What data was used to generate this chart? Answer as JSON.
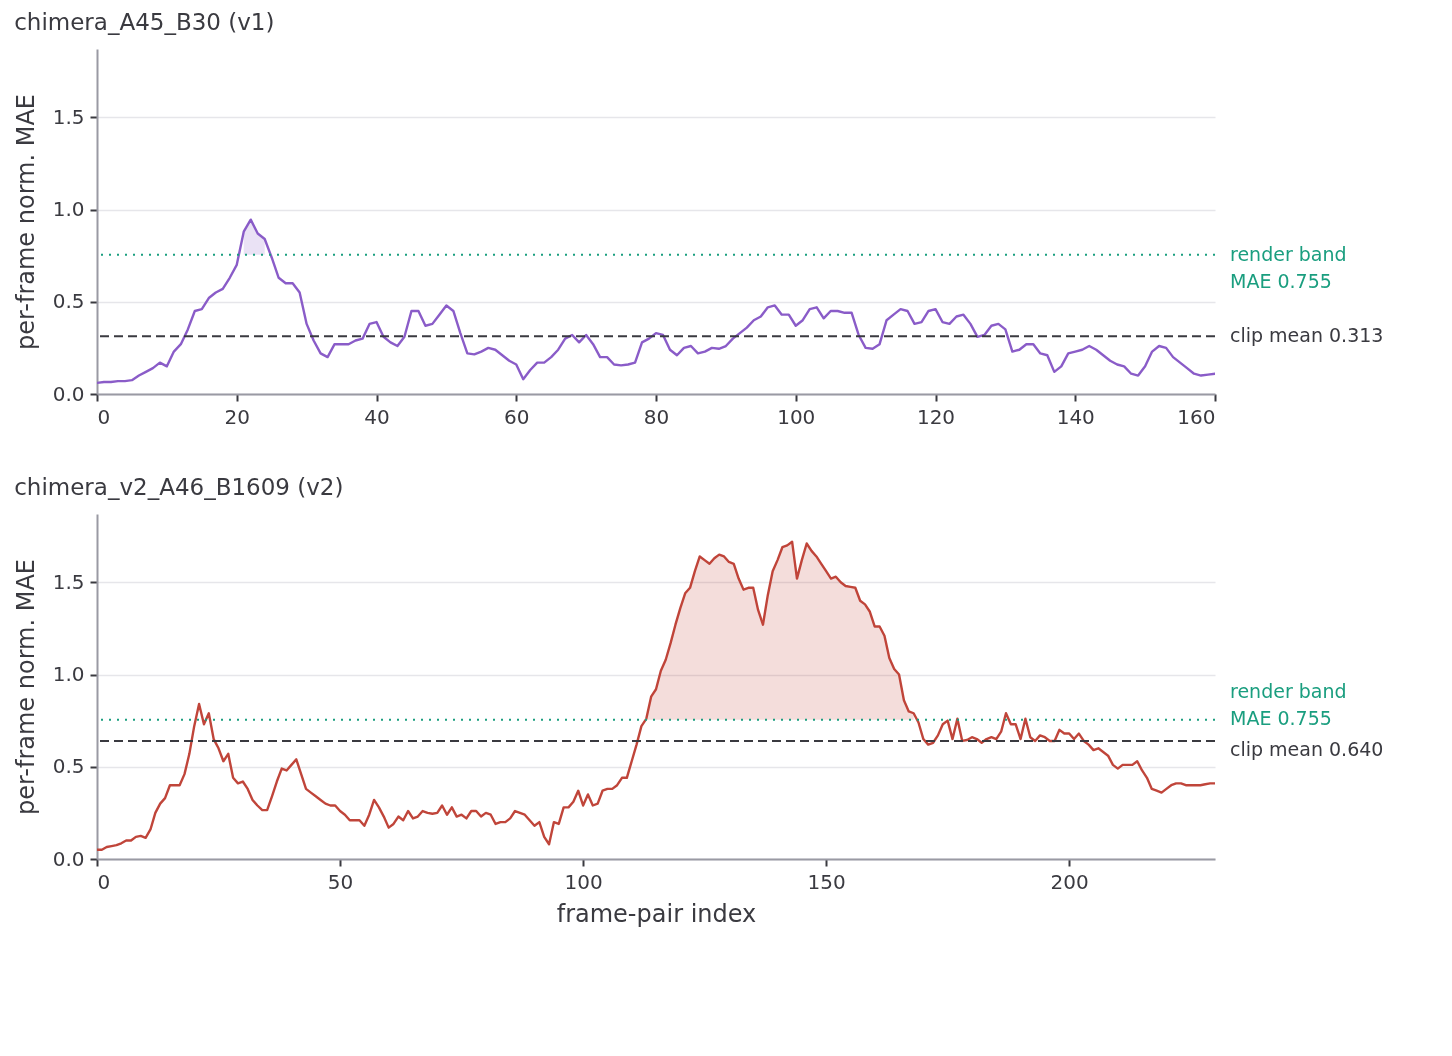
{
  "chart_data": [
    {
      "type": "line",
      "title": "chimera_A45_B30 (v1)",
      "ylabel": "per-frame norm. MAE",
      "xlim": [
        0,
        160
      ],
      "xticks": [
        0,
        20,
        40,
        60,
        80,
        100,
        120,
        140,
        160
      ],
      "ylim": [
        0,
        1.87
      ],
      "yticks": [
        {
          "value": 0,
          "label": "0.0"
        },
        {
          "value": 0.5,
          "label": "0.5"
        },
        {
          "value": 1,
          "label": "1.0"
        },
        {
          "value": 1.5,
          "label": "1.5"
        }
      ],
      "grid": "y",
      "marker": "none",
      "line_style": "solid",
      "series": [
        {
          "color": "#8a5cc8",
          "x": [
            0,
            1,
            2,
            3,
            4,
            5,
            6,
            7,
            8,
            9,
            10,
            11,
            12,
            13,
            14,
            15,
            16,
            17,
            18,
            19,
            20,
            21,
            22,
            23,
            24,
            25,
            26,
            27,
            28,
            29,
            30,
            31,
            32,
            33,
            34,
            35,
            36,
            37,
            38,
            39,
            40,
            41,
            42,
            43,
            44,
            45,
            46,
            47,
            48,
            49,
            50,
            51,
            52,
            53,
            54,
            55,
            56,
            57,
            58,
            59,
            60,
            61,
            62,
            63,
            64,
            65,
            66,
            67,
            68,
            69,
            70,
            71,
            72,
            73,
            74,
            75,
            76,
            77,
            78,
            79,
            80,
            81,
            82,
            83,
            84,
            85,
            86,
            87,
            88,
            89,
            90,
            91,
            92,
            93,
            94,
            95,
            96,
            97,
            98,
            99,
            100,
            101,
            102,
            103,
            104,
            105,
            106,
            107,
            108,
            109,
            110,
            111,
            112,
            113,
            114,
            115,
            116,
            117,
            118,
            119,
            120,
            121,
            122,
            123,
            124,
            125,
            126,
            127,
            128,
            129,
            130,
            131,
            132,
            133,
            134,
            135,
            136,
            137,
            138,
            139,
            140,
            141,
            142,
            143,
            144,
            145,
            146,
            147,
            148,
            149,
            150,
            151,
            152,
            153,
            154,
            155,
            156,
            157,
            158,
            159,
            160
          ],
          "values": [
            0.06,
            0.065,
            0.065,
            0.07,
            0.07,
            0.075,
            0.1,
            0.12,
            0.14,
            0.17,
            0.15,
            0.23,
            0.27,
            0.35,
            0.45,
            0.46,
            0.52,
            0.55,
            0.57,
            0.63,
            0.7,
            0.88,
            0.945,
            0.87,
            0.84,
            0.74,
            0.63,
            0.6,
            0.6,
            0.55,
            0.38,
            0.29,
            0.22,
            0.2,
            0.27,
            0.27,
            0.27,
            0.29,
            0.3,
            0.38,
            0.39,
            0.31,
            0.28,
            0.26,
            0.31,
            0.45,
            0.45,
            0.37,
            0.38,
            0.43,
            0.48,
            0.45,
            0.33,
            0.22,
            0.215,
            0.23,
            0.25,
            0.24,
            0.21,
            0.18,
            0.16,
            0.08,
            0.13,
            0.17,
            0.17,
            0.2,
            0.24,
            0.3,
            0.32,
            0.28,
            0.32,
            0.27,
            0.2,
            0.2,
            0.16,
            0.155,
            0.16,
            0.17,
            0.28,
            0.3,
            0.33,
            0.32,
            0.24,
            0.21,
            0.25,
            0.26,
            0.22,
            0.23,
            0.25,
            0.245,
            0.26,
            0.3,
            0.33,
            0.36,
            0.4,
            0.42,
            0.47,
            0.48,
            0.43,
            0.43,
            0.37,
            0.4,
            0.46,
            0.47,
            0.41,
            0.45,
            0.45,
            0.44,
            0.44,
            0.32,
            0.25,
            0.245,
            0.27,
            0.4,
            0.43,
            0.46,
            0.45,
            0.38,
            0.39,
            0.45,
            0.46,
            0.39,
            0.38,
            0.42,
            0.43,
            0.38,
            0.31,
            0.32,
            0.37,
            0.38,
            0.35,
            0.23,
            0.24,
            0.27,
            0.27,
            0.22,
            0.21,
            0.12,
            0.15,
            0.22,
            0.23,
            0.24,
            0.26,
            0.24,
            0.21,
            0.18,
            0.16,
            0.15,
            0.11,
            0.1,
            0.15,
            0.23,
            0.26,
            0.25,
            0.2,
            0.17,
            0.14,
            0.11,
            0.1,
            0.105,
            0.11
          ],
          "lower": [
            null,
            null,
            null,
            null,
            null,
            null,
            null,
            null,
            null,
            null,
            null,
            null,
            null,
            null,
            null,
            null,
            null,
            null,
            null,
            null,
            null,
            0.755,
            0.755,
            0.755,
            0.755,
            null,
            null,
            null,
            null,
            null,
            null,
            null,
            null,
            null,
            null,
            null,
            null,
            null,
            null,
            null,
            null,
            null,
            null,
            null,
            null,
            null,
            null,
            null,
            null,
            null,
            null,
            null,
            null,
            null,
            null,
            null,
            null,
            null,
            null,
            null,
            null,
            null,
            null,
            null,
            null,
            null,
            null,
            null,
            null,
            null,
            null,
            null,
            null,
            null,
            null,
            null,
            null,
            null,
            null,
            null,
            null,
            null,
            null,
            null,
            null,
            null,
            null,
            null,
            null,
            null,
            null,
            null,
            null,
            null,
            null,
            null,
            null,
            null,
            null,
            null,
            null,
            null,
            null,
            null,
            null,
            null,
            null,
            null,
            null,
            null,
            null,
            null,
            null,
            null,
            null,
            null,
            null,
            null,
            null,
            null,
            null,
            null,
            null,
            null,
            null,
            null,
            null,
            null,
            null,
            null,
            null,
            null,
            null,
            null,
            null,
            null,
            null,
            null,
            null,
            null,
            null,
            null,
            null,
            null,
            null,
            null,
            null,
            null,
            null,
            null,
            null,
            null,
            null,
            null,
            null,
            null,
            null,
            null,
            null,
            null,
            null
          ],
          "upper": [
            null,
            null,
            null,
            null,
            null,
            null,
            null,
            null,
            null,
            null,
            null,
            null,
            null,
            null,
            null,
            null,
            null,
            null,
            null,
            null,
            null,
            0.88,
            0.945,
            0.87,
            0.84,
            null,
            null,
            null,
            null,
            null,
            null,
            null,
            null,
            null,
            null,
            null,
            null,
            null,
            null,
            null,
            null,
            null,
            null,
            null,
            null,
            null,
            null,
            null,
            null,
            null,
            null,
            null,
            null,
            null,
            null,
            null,
            null,
            null,
            null,
            null,
            null,
            null,
            null,
            null,
            null,
            null,
            null,
            null,
            null,
            null,
            null,
            null,
            null,
            null,
            null,
            null,
            null,
            null,
            null,
            null,
            null,
            null,
            null,
            null,
            null,
            null,
            null,
            null,
            null,
            null,
            null,
            null,
            null,
            null,
            null,
            null,
            null,
            null,
            null,
            null,
            null,
            null,
            null,
            null,
            null,
            null,
            null,
            null,
            null,
            null,
            null,
            null,
            null,
            null,
            null,
            null,
            null,
            null,
            null,
            null,
            null,
            null,
            null,
            null,
            null,
            null,
            null,
            null,
            null,
            null,
            null,
            null,
            null,
            null,
            null,
            null,
            null,
            null,
            null,
            null,
            null,
            null,
            null,
            null,
            null,
            null,
            null,
            null,
            null,
            null,
            null,
            null,
            null,
            null,
            null,
            null,
            null,
            null,
            null,
            null,
            null
          ]
        }
      ],
      "ref_lines": [
        {
          "axis": "y",
          "value": 0.755,
          "label": "render band\nMAE 0.755",
          "color": "#1a9e7f",
          "line_style": "dotted"
        },
        {
          "axis": "y",
          "value": 0.313,
          "label": "clip mean 0.313",
          "color": "#3a3a40",
          "line_style": "dashed"
        }
      ]
    },
    {
      "type": "line",
      "title": "chimera_v2_A46_B1609 (v2)",
      "xlabel": "frame-pair index",
      "ylabel": "per-frame norm. MAE",
      "xlim": [
        0,
        230
      ],
      "xticks": [
        0,
        50,
        100,
        150,
        200
      ],
      "ylim": [
        0,
        1.87
      ],
      "yticks": [
        {
          "value": 0,
          "label": "0.0"
        },
        {
          "value": 0.5,
          "label": "0.5"
        },
        {
          "value": 1,
          "label": "1.0"
        },
        {
          "value": 1.5,
          "label": "1.5"
        }
      ],
      "grid": "y",
      "marker": "none",
      "line_style": "solid",
      "series": [
        {
          "color": "#c0453a",
          "x": [
            0,
            1,
            2,
            3,
            4,
            5,
            6,
            7,
            8,
            9,
            10,
            11,
            12,
            13,
            14,
            15,
            16,
            17,
            18,
            19,
            20,
            21,
            22,
            23,
            24,
            25,
            26,
            27,
            28,
            29,
            30,
            31,
            32,
            33,
            34,
            35,
            36,
            37,
            38,
            39,
            40,
            41,
            42,
            43,
            44,
            45,
            46,
            47,
            48,
            49,
            50,
            51,
            52,
            53,
            54,
            55,
            56,
            57,
            58,
            59,
            60,
            61,
            62,
            63,
            64,
            65,
            66,
            67,
            68,
            69,
            70,
            71,
            72,
            73,
            74,
            75,
            76,
            77,
            78,
            79,
            80,
            81,
            82,
            83,
            84,
            85,
            86,
            87,
            88,
            89,
            90,
            91,
            92,
            93,
            94,
            95,
            96,
            97,
            98,
            99,
            100,
            101,
            102,
            103,
            104,
            105,
            106,
            107,
            108,
            109,
            110,
            111,
            112,
            113,
            114,
            115,
            116,
            117,
            118,
            119,
            120,
            121,
            122,
            123,
            124,
            125,
            126,
            127,
            128,
            129,
            130,
            131,
            132,
            133,
            134,
            135,
            136,
            137,
            138,
            139,
            140,
            141,
            142,
            143,
            144,
            145,
            146,
            147,
            148,
            149,
            150,
            151,
            152,
            153,
            154,
            155,
            156,
            157,
            158,
            159,
            160,
            161,
            162,
            163,
            164,
            165,
            166,
            167,
            168,
            169,
            170,
            171,
            172,
            173,
            174,
            175,
            176,
            177,
            178,
            179,
            180,
            181,
            182,
            183,
            184,
            185,
            186,
            187,
            188,
            189,
            190,
            191,
            192,
            193,
            194,
            195,
            196,
            197,
            198,
            199,
            200,
            201,
            202,
            203,
            204,
            205,
            206,
            207,
            208,
            209,
            210,
            211,
            212,
            213,
            214,
            215,
            216,
            217,
            218,
            219,
            220,
            221,
            222,
            223,
            224,
            225,
            226,
            227,
            228,
            229,
            230
          ],
          "values": [
            0.05,
            0.05,
            0.065,
            0.07,
            0.075,
            0.085,
            0.1,
            0.1,
            0.12,
            0.125,
            0.115,
            0.16,
            0.25,
            0.3,
            0.33,
            0.4,
            0.4,
            0.4,
            0.46,
            0.57,
            0.72,
            0.84,
            0.73,
            0.79,
            0.65,
            0.6,
            0.53,
            0.57,
            0.44,
            0.41,
            0.42,
            0.38,
            0.32,
            0.29,
            0.265,
            0.265,
            0.34,
            0.42,
            0.49,
            0.48,
            0.51,
            0.54,
            0.46,
            0.38,
            0.36,
            0.34,
            0.32,
            0.3,
            0.29,
            0.29,
            0.26,
            0.24,
            0.21,
            0.21,
            0.21,
            0.18,
            0.24,
            0.32,
            0.28,
            0.23,
            0.17,
            0.19,
            0.23,
            0.21,
            0.26,
            0.22,
            0.23,
            0.26,
            0.25,
            0.245,
            0.25,
            0.29,
            0.24,
            0.28,
            0.23,
            0.24,
            0.22,
            0.26,
            0.26,
            0.23,
            0.25,
            0.24,
            0.19,
            0.2,
            0.2,
            0.22,
            0.26,
            0.25,
            0.24,
            0.21,
            0.18,
            0.2,
            0.12,
            0.08,
            0.2,
            0.19,
            0.28,
            0.28,
            0.31,
            0.37,
            0.29,
            0.35,
            0.29,
            0.3,
            0.37,
            0.38,
            0.38,
            0.4,
            0.44,
            0.44,
            0.53,
            0.62,
            0.72,
            0.76,
            0.88,
            0.92,
            1.02,
            1.08,
            1.17,
            1.27,
            1.36,
            1.44,
            1.47,
            1.56,
            1.64,
            1.62,
            1.6,
            1.63,
            1.65,
            1.64,
            1.61,
            1.6,
            1.52,
            1.46,
            1.47,
            1.47,
            1.35,
            1.27,
            1.43,
            1.56,
            1.62,
            1.69,
            1.7,
            1.72,
            1.52,
            1.62,
            1.71,
            1.67,
            1.64,
            1.6,
            1.56,
            1.52,
            1.53,
            1.5,
            1.48,
            1.475,
            1.47,
            1.4,
            1.38,
            1.34,
            1.26,
            1.26,
            1.21,
            1.09,
            1.03,
            1.0,
            0.86,
            0.8,
            0.79,
            0.74,
            0.65,
            0.62,
            0.63,
            0.67,
            0.73,
            0.75,
            0.65,
            0.76,
            0.64,
            0.645,
            0.66,
            0.65,
            0.63,
            0.65,
            0.66,
            0.65,
            0.69,
            0.79,
            0.73,
            0.73,
            0.65,
            0.76,
            0.66,
            0.64,
            0.67,
            0.66,
            0.64,
            0.64,
            0.7,
            0.68,
            0.68,
            0.65,
            0.68,
            0.64,
            0.62,
            0.59,
            0.6,
            0.58,
            0.56,
            0.51,
            0.49,
            0.51,
            0.51,
            0.51,
            0.53,
            0.48,
            0.44,
            0.38,
            0.37,
            0.36,
            0.38,
            0.4,
            0.41,
            0.41,
            0.4,
            0.4,
            0.4,
            0.4,
            0.405,
            0.41,
            0.41
          ],
          "lower": [
            null,
            null,
            null,
            null,
            null,
            null,
            null,
            null,
            null,
            null,
            null,
            null,
            null,
            null,
            null,
            null,
            null,
            null,
            null,
            null,
            null,
            null,
            null,
            null,
            null,
            null,
            null,
            null,
            null,
            null,
            null,
            null,
            null,
            null,
            null,
            null,
            null,
            null,
            null,
            null,
            null,
            null,
            null,
            null,
            null,
            null,
            null,
            null,
            null,
            null,
            null,
            null,
            null,
            null,
            null,
            null,
            null,
            null,
            null,
            null,
            null,
            null,
            null,
            null,
            null,
            null,
            null,
            null,
            null,
            null,
            null,
            null,
            null,
            null,
            null,
            null,
            null,
            null,
            null,
            null,
            null,
            null,
            null,
            null,
            null,
            null,
            null,
            null,
            null,
            null,
            null,
            null,
            null,
            null,
            null,
            null,
            null,
            null,
            null,
            null,
            null,
            null,
            null,
            null,
            null,
            null,
            null,
            null,
            null,
            null,
            null,
            null,
            null,
            0.755,
            0.755,
            0.755,
            0.755,
            0.755,
            0.755,
            0.755,
            0.755,
            0.755,
            0.755,
            0.755,
            0.755,
            0.755,
            0.755,
            0.755,
            0.755,
            0.755,
            0.755,
            0.755,
            0.755,
            0.755,
            0.755,
            0.755,
            0.755,
            0.755,
            0.755,
            0.755,
            0.755,
            0.755,
            0.755,
            0.755,
            0.755,
            0.755,
            0.755,
            0.755,
            0.755,
            0.755,
            0.755,
            0.755,
            0.755,
            0.755,
            0.755,
            0.755,
            0.755,
            0.755,
            0.755,
            0.755,
            0.755,
            0.755,
            0.755,
            0.755,
            0.755,
            0.755,
            0.755,
            0.755,
            0.755,
            null,
            null,
            null,
            null,
            null,
            null,
            null,
            null,
            null,
            null,
            null,
            null,
            null,
            null,
            null,
            null,
            null,
            null,
            null,
            null,
            null,
            null,
            null,
            null,
            null,
            null,
            null,
            null,
            null,
            null,
            null,
            null,
            null,
            null,
            null,
            null,
            null,
            null,
            null,
            null,
            null,
            null,
            null,
            null,
            null,
            null,
            null,
            null,
            null,
            null,
            null,
            null,
            null,
            null,
            null,
            null,
            null,
            null,
            null,
            null,
            null,
            null
          ],
          "upper": [
            null,
            null,
            null,
            null,
            null,
            null,
            null,
            null,
            null,
            null,
            null,
            null,
            null,
            null,
            null,
            null,
            null,
            null,
            null,
            null,
            null,
            null,
            null,
            null,
            null,
            null,
            null,
            null,
            null,
            null,
            null,
            null,
            null,
            null,
            null,
            null,
            null,
            null,
            null,
            null,
            null,
            null,
            null,
            null,
            null,
            null,
            null,
            null,
            null,
            null,
            null,
            null,
            null,
            null,
            null,
            null,
            null,
            null,
            null,
            null,
            null,
            null,
            null,
            null,
            null,
            null,
            null,
            null,
            null,
            null,
            null,
            null,
            null,
            null,
            null,
            null,
            null,
            null,
            null,
            null,
            null,
            null,
            null,
            null,
            null,
            null,
            null,
            null,
            null,
            null,
            null,
            null,
            null,
            null,
            null,
            null,
            null,
            null,
            null,
            null,
            null,
            null,
            null,
            null,
            null,
            null,
            null,
            null,
            null,
            null,
            null,
            null,
            null,
            0.76,
            0.88,
            0.92,
            1.02,
            1.08,
            1.17,
            1.27,
            1.36,
            1.44,
            1.47,
            1.56,
            1.64,
            1.62,
            1.6,
            1.63,
            1.65,
            1.64,
            1.61,
            1.6,
            1.52,
            1.46,
            1.47,
            1.47,
            1.35,
            1.27,
            1.43,
            1.56,
            1.62,
            1.69,
            1.7,
            1.72,
            1.52,
            1.62,
            1.71,
            1.67,
            1.64,
            1.6,
            1.56,
            1.52,
            1.53,
            1.5,
            1.48,
            1.475,
            1.47,
            1.4,
            1.38,
            1.34,
            1.26,
            1.26,
            1.21,
            1.09,
            1.03,
            1.0,
            0.86,
            0.8,
            0.79,
            null,
            null,
            null,
            null,
            null,
            null,
            null,
            null,
            null,
            null,
            null,
            null,
            null,
            null,
            null,
            null,
            null,
            null,
            null,
            null,
            null,
            null,
            null,
            null,
            null,
            null,
            null,
            null,
            null,
            null,
            null,
            null,
            null,
            null,
            null,
            null,
            null,
            null,
            null,
            null,
            null,
            null,
            null,
            null,
            null,
            null,
            null,
            null,
            null,
            null,
            null,
            null,
            null,
            null,
            null,
            null,
            null,
            null,
            null,
            null,
            null,
            null
          ]
        }
      ],
      "ref_lines": [
        {
          "axis": "y",
          "value": 0.755,
          "label": "render band\nMAE 0.755",
          "color": "#1a9e7f",
          "line_style": "dotted"
        },
        {
          "axis": "y",
          "value": 0.64,
          "label": "clip mean 0.640",
          "color": "#3a3a40",
          "line_style": "dashed"
        }
      ]
    }
  ]
}
